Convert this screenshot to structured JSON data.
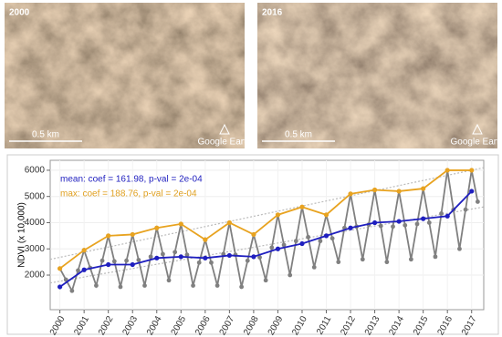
{
  "images": [
    {
      "label": "2000",
      "scale": "0.5 km",
      "credit": "Google Earth"
    },
    {
      "label": "2016",
      "scale": "0.5 km",
      "credit": "Google Earth"
    }
  ],
  "chart_data": {
    "type": "line",
    "y_label": "NDVI (x 10,000)",
    "annotations": [
      {
        "text": "mean: coef = 161.98, p-val = 2e-04",
        "color": "#1f1fbf"
      },
      {
        "text": "max: coef = 188.76, p-val = 2e-04",
        "color": "#e0a020"
      }
    ],
    "xlim": [
      1999.6,
      2017.5
    ],
    "xticks": [
      2000,
      2001,
      2002,
      2003,
      2004,
      2005,
      2006,
      2007,
      2008,
      2009,
      2010,
      2011,
      2012,
      2013,
      2014,
      2015,
      2016,
      2017
    ],
    "ylim": [
      680,
      6380
    ],
    "yticks": [
      2000,
      3000,
      4000,
      5000,
      6000
    ],
    "grid": true,
    "series": [
      {
        "color": "#bbbbbb",
        "style": "dotted",
        "marker": false,
        "x": [
          1999.6,
          2017.5
        ],
        "values": [
          1700,
          4600
        ]
      },
      {
        "color": "#bbbbbb",
        "style": "dotted",
        "marker": false,
        "x": [
          1999.6,
          2017.5
        ],
        "values": [
          2600,
          6100
        ]
      },
      {
        "color": "#808080",
        "style": "solid",
        "marker": true,
        "x": [
          2000,
          2000.25,
          2000.5,
          2000.75,
          2001,
          2001.25,
          2001.5,
          2001.75,
          2002,
          2002.25,
          2002.5,
          2002.75,
          2003,
          2003.25,
          2003.5,
          2003.75,
          2004,
          2004.25,
          2004.5,
          2004.75,
          2005,
          2005.25,
          2005.5,
          2005.75,
          2006,
          2006.25,
          2006.5,
          2006.75,
          2007,
          2007.25,
          2007.5,
          2007.75,
          2008,
          2008.25,
          2008.5,
          2008.75,
          2009,
          2009.25,
          2009.5,
          2009.75,
          2010,
          2010.25,
          2010.5,
          2010.75,
          2011,
          2011.25,
          2011.5,
          2011.75,
          2012,
          2012.25,
          2012.5,
          2012.75,
          2013,
          2013.25,
          2013.5,
          2013.75,
          2014,
          2014.25,
          2014.5,
          2014.75,
          2015,
          2015.25,
          2015.5,
          2015.75,
          2016,
          2016.25,
          2016.5,
          2016.75,
          2017,
          2017.25
        ],
        "values": [
          2250,
          1825,
          1400,
          2175,
          2950,
          2275,
          1600,
          2550,
          3500,
          2525,
          1550,
          2550,
          3550,
          2575,
          1600,
          2700,
          3800,
          2800,
          1800,
          2875,
          3950,
          2775,
          1600,
          2475,
          3350,
          2475,
          1600,
          2800,
          4000,
          2775,
          1550,
          2550,
          3550,
          2675,
          1800,
          3050,
          4300,
          3150,
          2000,
          3300,
          4600,
          3450,
          2300,
          3300,
          4300,
          3400,
          2500,
          3800,
          5100,
          3850,
          2600,
          3925,
          5250,
          3875,
          2500,
          3850,
          5200,
          3900,
          2600,
          3950,
          5300,
          4000,
          2700,
          4350,
          6000,
          4500,
          3000,
          4500,
          6000,
          4800
        ]
      },
      {
        "color": "#e8a320",
        "style": "solid",
        "marker": true,
        "x": [
          2000,
          2001,
          2002,
          2003,
          2004,
          2005,
          2006,
          2007,
          2008,
          2009,
          2010,
          2011,
          2012,
          2013,
          2014,
          2015,
          2016,
          2017
        ],
        "values": [
          2250,
          2950,
          3500,
          3550,
          3800,
          3950,
          3350,
          4000,
          3550,
          4300,
          4600,
          4300,
          5100,
          5250,
          5200,
          5300,
          6000,
          6000
        ]
      },
      {
        "color": "#1f1fbf",
        "style": "solid",
        "marker": true,
        "x": [
          2000,
          2001,
          2002,
          2003,
          2004,
          2005,
          2006,
          2007,
          2008,
          2009,
          2010,
          2011,
          2012,
          2013,
          2014,
          2015,
          2016,
          2017
        ],
        "values": [
          1550,
          2200,
          2400,
          2400,
          2650,
          2700,
          2650,
          2750,
          2700,
          3000,
          3200,
          3500,
          3800,
          4000,
          4050,
          4150,
          4250,
          5200
        ]
      }
    ]
  }
}
